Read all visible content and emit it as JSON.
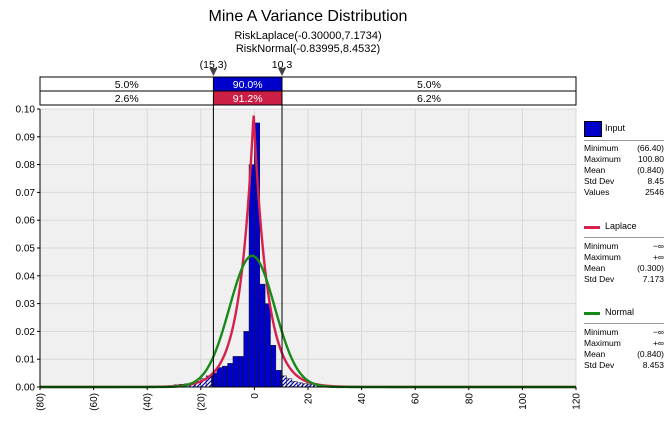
{
  "chart_data": {
    "type": "histogram",
    "title": "Mine A Variance Distribution",
    "subtitle_lines": [
      "RiskLaplace(-0.30000,7.1734)",
      "RiskNormal(-0.83995,8.4532)"
    ],
    "xlim": [
      -80,
      120
    ],
    "ylim": [
      0,
      0.1
    ],
    "x_ticks": [
      "(80)",
      "(60)",
      "(40)",
      "(20)",
      "0",
      "20",
      "40",
      "60",
      "80",
      "100",
      "120"
    ],
    "x_tick_values": [
      -80,
      -60,
      -40,
      -20,
      0,
      20,
      40,
      60,
      80,
      100,
      120
    ],
    "y_ticks": [
      "0.00",
      "0.01",
      "0.02",
      "0.03",
      "0.04",
      "0.05",
      "0.06",
      "0.07",
      "0.08",
      "0.09",
      "0.10"
    ],
    "y_tick_values": [
      0,
      0.01,
      0.02,
      0.03,
      0.04,
      0.05,
      0.06,
      0.07,
      0.08,
      0.09,
      0.1
    ],
    "markers": {
      "left_label": "(15.3)",
      "left_value": -15.3,
      "right_label": "10.3",
      "right_value": 10.3
    },
    "percent_bars": [
      {
        "left": "5.0%",
        "middle": "90.0%",
        "right": "5.0%",
        "color": "#0000cc"
      },
      {
        "left": "2.6%",
        "middle": "91.2%",
        "right": "6.2%",
        "color": "#cc1f46"
      }
    ],
    "histogram": {
      "bin_width": 2,
      "bins": [
        [
          -32,
          0.0005
        ],
        [
          -30,
          0.0008
        ],
        [
          -28,
          0.001
        ],
        [
          -26,
          0.0012
        ],
        [
          -24,
          0.0015
        ],
        [
          -22,
          0.002
        ],
        [
          -20,
          0.003
        ],
        [
          -18,
          0.004
        ],
        [
          -16,
          0.005
        ],
        [
          -14,
          0.007
        ],
        [
          -12,
          0.0075
        ],
        [
          -10,
          0.0085
        ],
        [
          -8,
          0.011
        ],
        [
          -6,
          0.011
        ],
        [
          -4,
          0.02
        ],
        [
          -2,
          0.08
        ],
        [
          0,
          0.095
        ],
        [
          2,
          0.037
        ],
        [
          4,
          0.03
        ],
        [
          6,
          0.015
        ],
        [
          8,
          0.006
        ],
        [
          10,
          0.004
        ],
        [
          12,
          0.003
        ],
        [
          14,
          0.002
        ],
        [
          16,
          0.0015
        ],
        [
          18,
          0.0012
        ],
        [
          20,
          0.001
        ],
        [
          22,
          0.0008
        ],
        [
          24,
          0.0006
        ],
        [
          26,
          0.0005
        ],
        [
          28,
          0.0004
        ],
        [
          30,
          0.0003
        ]
      ]
    },
    "fits": [
      {
        "name": "Laplace",
        "dist": "laplace",
        "mu": -0.3,
        "sd": 7.1734,
        "color": "#d6204e"
      },
      {
        "name": "Normal",
        "dist": "normal",
        "mu": -0.83995,
        "sd": 8.4532,
        "color": "#178a17"
      }
    ],
    "colors": {
      "input_bar": "#0000cc",
      "plot_bg": "#f0f0f0",
      "grid": "#d8d8d8"
    }
  },
  "legend": {
    "input": {
      "label": "Input",
      "color": "#0000cc",
      "stats": [
        [
          "Minimum",
          "(66.40)"
        ],
        [
          "Maximum",
          "100.80"
        ],
        [
          "Mean",
          "(0.840)"
        ],
        [
          "Std Dev",
          "8.45"
        ],
        [
          "Values",
          "2546"
        ]
      ]
    },
    "laplace": {
      "label": "Laplace",
      "color": "#d6204e",
      "stats": [
        [
          "Minimum",
          "−∞"
        ],
        [
          "Maximum",
          "+∞"
        ],
        [
          "Mean",
          "(0.300)"
        ],
        [
          "Std Dev",
          "7.173"
        ]
      ]
    },
    "normal": {
      "label": "Normal",
      "color": "#178a17",
      "stats": [
        [
          "Minimum",
          "−∞"
        ],
        [
          "Maximum",
          "+∞"
        ],
        [
          "Mean",
          "(0.840)"
        ],
        [
          "Std Dev",
          "8.453"
        ]
      ]
    }
  }
}
